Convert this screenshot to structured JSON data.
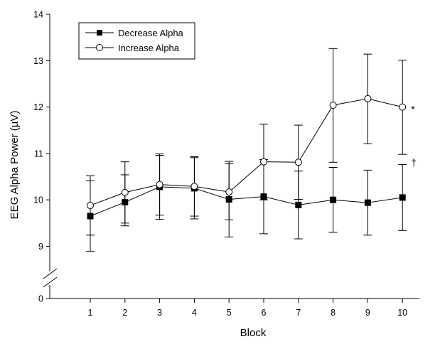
{
  "chart_data": {
    "type": "line",
    "xlabel": "Block",
    "ylabel": "EEG Alpha Power (µV)",
    "x": [
      1,
      2,
      3,
      4,
      5,
      6,
      7,
      8,
      9,
      10
    ],
    "x_ticks": [
      "1",
      "2",
      "3",
      "4",
      "5",
      "6",
      "7",
      "8",
      "9",
      "10"
    ],
    "y_ticks": [
      "0",
      "9",
      "10",
      "11",
      "12",
      "13",
      "14"
    ],
    "y_axis_break": "between 0 and 9",
    "ylim": [
      9,
      14
    ],
    "legend_position": "top-left",
    "grid": false,
    "series": [
      {
        "name": "Decrease Alpha",
        "marker": "filled-square",
        "color": "#000000",
        "values": [
          9.65,
          9.95,
          10.28,
          10.25,
          10.01,
          10.07,
          9.89,
          10.0,
          9.94,
          10.05
        ],
        "err_low": [
          8.89,
          9.44,
          9.58,
          9.59,
          9.2,
          9.27,
          9.16,
          9.3,
          9.24,
          9.34
        ],
        "err_high": [
          10.41,
          10.54,
          10.96,
          10.91,
          10.78,
          10.87,
          10.62,
          10.7,
          10.64,
          10.76
        ]
      },
      {
        "name": "Increase Alpha",
        "marker": "open-circle",
        "color": "#000000",
        "values": [
          9.88,
          10.16,
          10.33,
          10.29,
          10.17,
          10.82,
          10.81,
          12.04,
          12.18,
          12.0
        ],
        "err_low": [
          9.24,
          9.5,
          9.67,
          9.65,
          9.57,
          10.0,
          10.01,
          10.81,
          11.21,
          10.98
        ],
        "err_high": [
          10.52,
          10.82,
          10.99,
          10.93,
          10.83,
          11.63,
          11.61,
          13.26,
          13.14,
          13.01
        ]
      }
    ],
    "annotations": [
      {
        "text": "*",
        "series": 1,
        "x": 10
      },
      {
        "text": "†",
        "series": 0,
        "x": 10
      }
    ]
  }
}
